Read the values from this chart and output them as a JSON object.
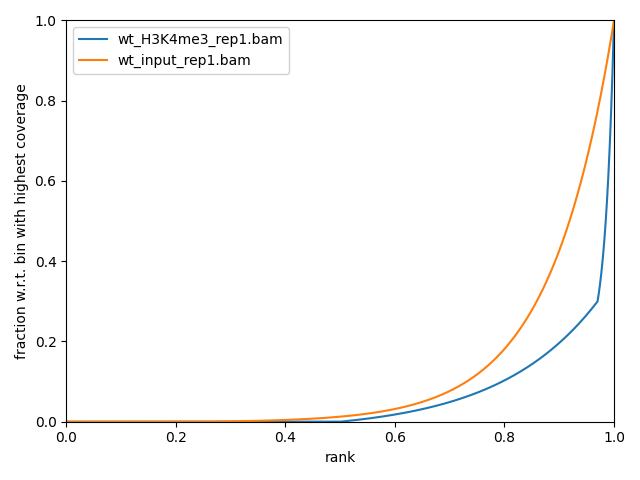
{
  "title": "",
  "xlabel": "rank",
  "ylabel": "fraction w.r.t. bin with highest coverage",
  "legend_labels": [
    "wt_H3K4me3_rep1.bam",
    "wt_input_rep1.bam"
  ],
  "colors": [
    "#1f77b4",
    "#ff7f0e"
  ],
  "line_width": 1.5,
  "figsize": [
    6.4,
    4.8
  ],
  "dpi": 100,
  "xlim": [
    0.0,
    1.0
  ],
  "ylim": [
    0.0,
    1.0
  ]
}
